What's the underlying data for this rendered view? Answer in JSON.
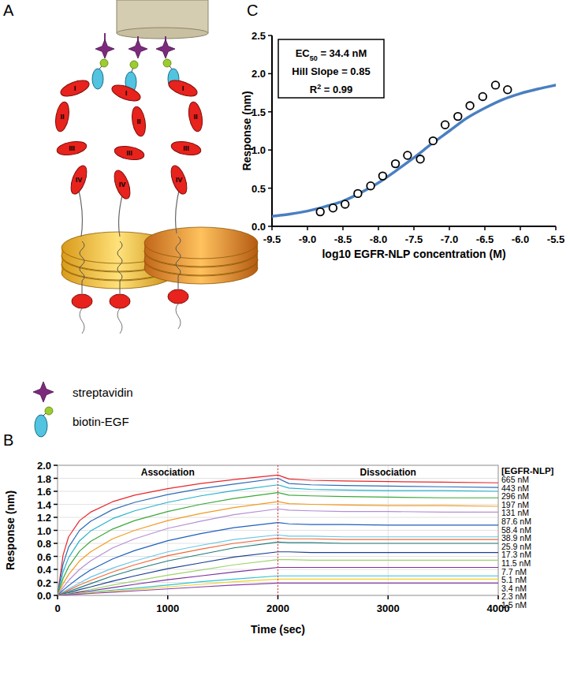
{
  "diagram": {
    "panel": "A",
    "legend": [
      {
        "label": "streptavidin"
      },
      {
        "label": "biotin-EGF"
      }
    ],
    "domain_labels": [
      "I",
      "II",
      "III",
      "IV"
    ]
  },
  "chart_data": [
    {
      "panel": "B",
      "type": "line",
      "x_label": "Time (sec)",
      "y_label": "Response (nm)",
      "xlim": [
        0,
        4000
      ],
      "ylim": [
        0,
        2
      ],
      "xticks": [
        0,
        1000,
        2000,
        3000,
        4000
      ],
      "yticks": [
        {
          "value": 0,
          "label": "0.0"
        },
        0.2,
        0.4,
        0.6,
        0.8,
        {
          "value": 1,
          "label": "1.0"
        },
        1.2,
        1.4,
        1.6,
        1.8,
        {
          "value": 2,
          "label": "2.0"
        }
      ],
      "grid": true,
      "legend": "right",
      "legend_title": "[EGFR-NLP]",
      "phase_labels": [
        "Association",
        "Dissociation"
      ],
      "phase_boundary": 2000,
      "x": [
        0,
        50,
        100,
        200,
        300,
        500,
        700,
        1000,
        1300,
        1600,
        2000,
        2100,
        2300,
        2600,
        3000,
        3500,
        4000
      ],
      "series": [
        {
          "name": "665 nM",
          "color": "#e8262b",
          "values": [
            0,
            0.62,
            0.9,
            1.15,
            1.28,
            1.44,
            1.54,
            1.64,
            1.72,
            1.78,
            1.85,
            1.79,
            1.77,
            1.76,
            1.75,
            1.74,
            1.73
          ]
        },
        {
          "name": "443 nM",
          "color": "#2d6bb5",
          "values": [
            0,
            0.48,
            0.74,
            1.0,
            1.14,
            1.32,
            1.43,
            1.55,
            1.64,
            1.71,
            1.8,
            1.72,
            1.7,
            1.69,
            1.68,
            1.67,
            1.66
          ]
        },
        {
          "name": "296 nM",
          "color": "#24b3c9",
          "values": [
            0,
            0.36,
            0.58,
            0.84,
            0.99,
            1.18,
            1.3,
            1.43,
            1.53,
            1.61,
            1.7,
            1.65,
            1.63,
            1.62,
            1.61,
            1.61,
            1.6
          ]
        },
        {
          "name": "197 nM",
          "color": "#3aa83a",
          "values": [
            0,
            0.26,
            0.44,
            0.68,
            0.83,
            1.02,
            1.15,
            1.29,
            1.4,
            1.49,
            1.58,
            1.54,
            1.53,
            1.52,
            1.51,
            1.5,
            1.5
          ]
        },
        {
          "name": "131 nM",
          "color": "#f39a1f",
          "values": [
            0,
            0.18,
            0.32,
            0.53,
            0.67,
            0.87,
            1.0,
            1.15,
            1.26,
            1.35,
            1.44,
            1.41,
            1.4,
            1.39,
            1.38,
            1.38,
            1.37
          ]
        },
        {
          "name": "87.6 nM",
          "color": "#b58fd6",
          "values": [
            0,
            0.12,
            0.23,
            0.4,
            0.53,
            0.73,
            0.87,
            1.03,
            1.14,
            1.24,
            1.33,
            1.31,
            1.3,
            1.29,
            1.29,
            1.28,
            1.28
          ]
        },
        {
          "name": "58.4 nM",
          "color": "#1f5fbf",
          "values": [
            0,
            0.08,
            0.15,
            0.28,
            0.39,
            0.56,
            0.69,
            0.84,
            0.95,
            1.04,
            1.12,
            1.1,
            1.09,
            1.09,
            1.08,
            1.08,
            1.08
          ]
        },
        {
          "name": "38.9 nM",
          "color": "#6cc6e6",
          "values": [
            0,
            0.05,
            0.1,
            0.19,
            0.28,
            0.42,
            0.53,
            0.67,
            0.77,
            0.86,
            0.93,
            0.91,
            0.91,
            0.9,
            0.9,
            0.9,
            0.9
          ]
        },
        {
          "name": "25.9 nM",
          "color": "#f06a3a",
          "values": [
            0,
            0.04,
            0.08,
            0.16,
            0.23,
            0.36,
            0.47,
            0.61,
            0.71,
            0.8,
            0.88,
            0.87,
            0.87,
            0.86,
            0.86,
            0.86,
            0.86
          ]
        },
        {
          "name": "17.3 nM",
          "color": "#247a7a",
          "values": [
            0,
            0.03,
            0.06,
            0.12,
            0.18,
            0.3,
            0.4,
            0.53,
            0.63,
            0.73,
            0.82,
            0.81,
            0.81,
            0.8,
            0.8,
            0.8,
            0.8
          ]
        },
        {
          "name": "11.5 nM",
          "color": "#1d3f8f",
          "values": [
            0,
            0.02,
            0.04,
            0.09,
            0.13,
            0.22,
            0.3,
            0.41,
            0.5,
            0.59,
            0.67,
            0.67,
            0.66,
            0.66,
            0.66,
            0.66,
            0.66
          ]
        },
        {
          "name": "7.7 nM",
          "color": "#9ed46e",
          "values": [
            0,
            0.015,
            0.03,
            0.06,
            0.09,
            0.16,
            0.22,
            0.31,
            0.39,
            0.47,
            0.55,
            0.55,
            0.54,
            0.54,
            0.54,
            0.54,
            0.54
          ]
        },
        {
          "name": "5.1 nM",
          "color": "#7a2f9e",
          "values": [
            0,
            0.01,
            0.02,
            0.05,
            0.07,
            0.12,
            0.17,
            0.24,
            0.3,
            0.36,
            0.43,
            0.43,
            0.43,
            0.43,
            0.43,
            0.43,
            0.43
          ]
        },
        {
          "name": "3.4 nM",
          "color": "#2fc3d8",
          "values": [
            0,
            0.01,
            0.02,
            0.03,
            0.05,
            0.08,
            0.11,
            0.16,
            0.21,
            0.25,
            0.3,
            0.3,
            0.3,
            0.3,
            0.3,
            0.3,
            0.3
          ]
        },
        {
          "name": "2.3 nM",
          "color": "#f2d22a",
          "values": [
            0,
            0.01,
            0.01,
            0.03,
            0.04,
            0.07,
            0.09,
            0.13,
            0.17,
            0.21,
            0.25,
            0.25,
            0.25,
            0.25,
            0.25,
            0.25,
            0.25
          ]
        },
        {
          "name": "1.5 nM",
          "color": "#8b3fa8",
          "values": [
            0,
            0.005,
            0.01,
            0.02,
            0.03,
            0.05,
            0.07,
            0.1,
            0.13,
            0.16,
            0.19,
            0.19,
            0.19,
            0.19,
            0.19,
            0.19,
            0.19
          ]
        }
      ]
    },
    {
      "panel": "C",
      "type": "scatter",
      "x_label": "log10 EGFR-NLP concentration (M)",
      "y_label": "Response (nm)",
      "xlim": [
        -9.5,
        -5.5
      ],
      "ylim": [
        0,
        2.5
      ],
      "xticks": [
        -9.5,
        {
          "value": -9,
          "label": "-9.0"
        },
        -8.5,
        {
          "value": -8,
          "label": "-8.0"
        },
        -7.5,
        {
          "value": -7,
          "label": "-7.0"
        },
        -6.5,
        {
          "value": -6,
          "label": "-6.0"
        },
        -5.5
      ],
      "yticks": [
        {
          "value": 0,
          "label": "0.0"
        },
        0.5,
        {
          "value": 1,
          "label": "1.0"
        },
        1.5,
        {
          "value": 2,
          "label": "2.0"
        },
        2.5
      ],
      "grid": false,
      "annotations": [
        {
          "text": "EC",
          "sub": "50",
          "rest": " = 34.4 nM"
        },
        {
          "text": "Hill Slope = 0.85"
        },
        {
          "text": "R",
          "sup": "2",
          "rest": " = 0.99"
        }
      ],
      "series": [
        {
          "type": "line",
          "color": "#4a7fc1",
          "line_style": "solid",
          "x": [
            -9.5,
            -9.25,
            -9,
            -8.75,
            -8.5,
            -8.25,
            -8,
            -7.75,
            -7.5,
            -7.25,
            -7,
            -6.75,
            -6.5,
            -6.25,
            -6,
            -5.75,
            -5.5
          ],
          "values": [
            0.13,
            0.16,
            0.2,
            0.26,
            0.33,
            0.44,
            0.57,
            0.73,
            0.9,
            1.08,
            1.25,
            1.42,
            1.55,
            1.66,
            1.74,
            1.8,
            1.85
          ]
        },
        {
          "type": "scatter",
          "color": "#000000",
          "marker": "circle",
          "x": [
            -8.82,
            -8.64,
            -8.47,
            -8.29,
            -8.11,
            -7.94,
            -7.76,
            -7.59,
            -7.41,
            -7.23,
            -7.06,
            -6.88,
            -6.71,
            -6.53,
            -6.35,
            -6.18
          ],
          "values": [
            0.19,
            0.24,
            0.29,
            0.43,
            0.53,
            0.66,
            0.82,
            0.93,
            0.88,
            1.12,
            1.33,
            1.44,
            1.58,
            1.7,
            1.85,
            1.79
          ]
        }
      ]
    }
  ]
}
